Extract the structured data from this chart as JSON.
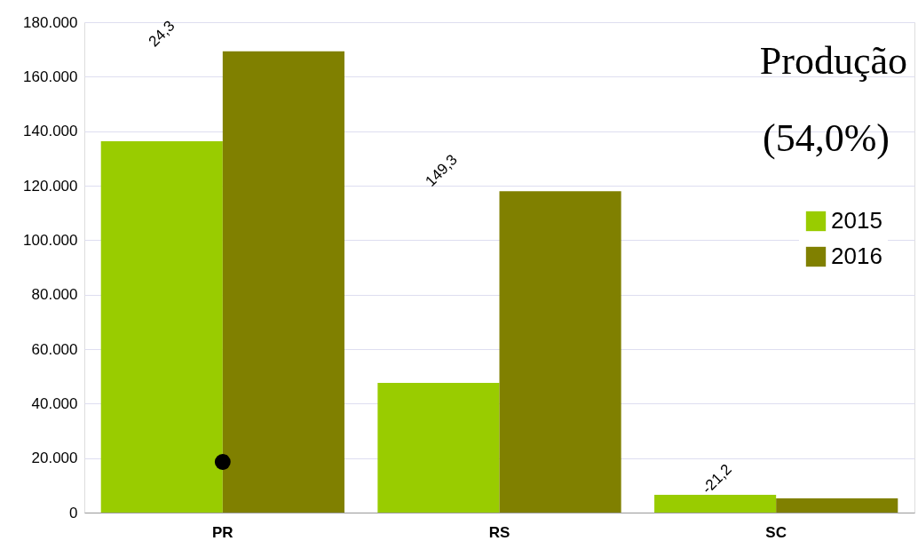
{
  "chart_data": {
    "type": "bar",
    "title": "Produção",
    "subtitle": "(54,0%)",
    "categories": [
      "PR",
      "RS",
      "SC"
    ],
    "series": [
      {
        "name": "2015",
        "color": "#99cc00",
        "values": [
          136300,
          47600,
          6500
        ]
      },
      {
        "name": "2016",
        "color": "#808000",
        "values": [
          169300,
          118000,
          5200
        ]
      },
      {
        "type": "scatter",
        "color": "#000000",
        "x": [
          "PR"
        ],
        "values": [
          18600
        ],
        "marker": "circle"
      }
    ],
    "ylim": [
      0,
      180000
    ],
    "yticks": [
      0,
      {
        "value": 20000,
        "label": "20.000"
      },
      {
        "value": 40000,
        "label": "40.000"
      },
      {
        "value": 60000,
        "label": "60.000"
      },
      {
        "value": 80000,
        "label": "80.000"
      },
      {
        "value": 100000,
        "label": "100.000"
      },
      {
        "value": 120000,
        "label": "120.000"
      },
      {
        "value": 140000,
        "label": "140.000"
      },
      {
        "value": 160000,
        "label": "160.000"
      },
      {
        "value": 180000,
        "label": "180.000"
      }
    ],
    "annotations": [
      {
        "text": "24,3",
        "x": "PR",
        "y": 169300
      },
      {
        "text": "149,3",
        "x": "RS",
        "y": 118000
      },
      {
        "text": "-21,2",
        "x": "SC",
        "y": 5200
      }
    ],
    "grid": "y",
    "legend": "top right"
  }
}
